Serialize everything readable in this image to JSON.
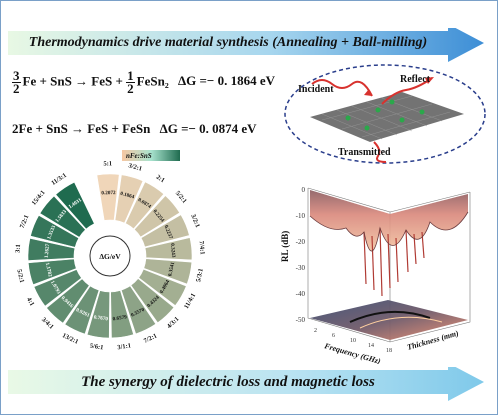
{
  "banner_top": {
    "text": "Thermodynamics drive material synthesis (Annealing + Ball-milling)"
  },
  "banner_bottom": {
    "text": "The synergy of dielectric loss and magnetic loss"
  },
  "equation_1": {
    "coef1_num": "3",
    "coef1_den": "2",
    "left": "Fe + SnS → FeS +",
    "coef2_num": "1",
    "coef2_den": "2",
    "product": "FeSn₂",
    "dg": "ΔG =− 0. 1864 eV"
  },
  "equation_2": {
    "text": "2Fe + SnS → FeS + FeSn",
    "dg": "ΔG =− 0. 0874 eV"
  },
  "shield": {
    "incident": "Incident",
    "reflect": "Reflect",
    "transmitted": "Transmitted"
  },
  "fan": {
    "center_label": "ΔG/eV",
    "legend_label": "nFe:SnS",
    "ratios": [
      "5:1",
      "3/2:1",
      "2:1",
      "5/2:1",
      "3/2:1",
      "7/4:1",
      "5/3:1",
      "11/4:1",
      "4/3:1",
      "7/2:1",
      "3/1:1",
      "5/6:1",
      "13/2:1",
      "3/4:1",
      "4:1",
      "5/2:1",
      "3:1",
      "7/2:1",
      "15/4:1",
      "11/3:1"
    ],
    "values": [
      "0.2072",
      "0.1864",
      "0.0874",
      "0.2254",
      "0.2237",
      "0.3243",
      "0.3541",
      "0.4064",
      "0.4324",
      "0.3570",
      "0.6579",
      "0.7670",
      "0.9261",
      "0.9416",
      "1.0793",
      "1.1782",
      "1.2627",
      "1.3533",
      "1.5833",
      "1.4031"
    ]
  },
  "plot": {
    "z_label": "RL (dB)",
    "x_label": "Frequency (GHz)",
    "y_label": "Thickness (mm)",
    "z_ticks": [
      "0",
      "-10",
      "-20",
      "-30",
      "-40",
      "-50"
    ],
    "x_ticks": [
      "18",
      "14",
      "10",
      "6",
      "2"
    ]
  },
  "colors": {
    "banner_top": "#4a9ad8",
    "banner_bottom": "#7fc9ea",
    "fan_light": "#a9e3cf",
    "fan_dark": "#1f6b4f",
    "surface": "#c44a3b"
  }
}
